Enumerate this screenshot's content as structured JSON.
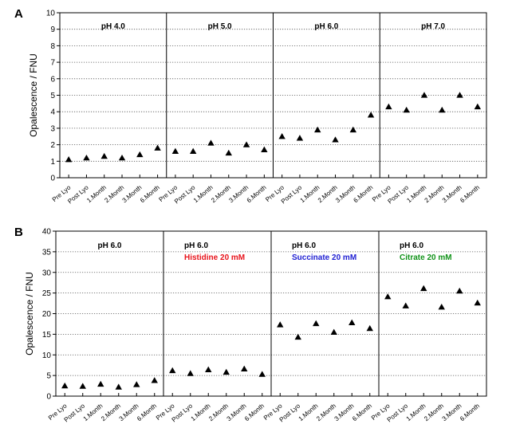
{
  "chart_data": [
    {
      "panel_label": "A",
      "type": "scatter",
      "ylabel": "Opalescence / FNU",
      "ylim": [
        0,
        10
      ],
      "yticks": [
        0,
        1,
        2,
        3,
        4,
        5,
        6,
        7,
        8,
        9,
        10
      ],
      "grid": "dotted horizontal",
      "marker": "triangle",
      "marker_color": "#000000",
      "categories": [
        "Pre Lyo",
        "Post Lyo",
        "1.Month",
        "2.Month",
        "3.Month",
        "6.Month"
      ],
      "subplots": [
        {
          "title": "pH 4.0",
          "subtitle": "",
          "subtitle_color": "#000000",
          "values": [
            1.1,
            1.2,
            1.3,
            1.2,
            1.4,
            1.8
          ]
        },
        {
          "title": "pH 5.0",
          "subtitle": "",
          "subtitle_color": "#000000",
          "values": [
            1.6,
            1.6,
            2.1,
            1.5,
            2.0,
            1.7
          ]
        },
        {
          "title": "pH 6.0",
          "subtitle": "",
          "subtitle_color": "#000000",
          "values": [
            2.5,
            2.4,
            2.9,
            2.3,
            2.9,
            3.8
          ]
        },
        {
          "title": "pH 7.0",
          "subtitle": "",
          "subtitle_color": "#000000",
          "values": [
            4.3,
            4.1,
            5.0,
            4.1,
            5.0,
            4.3
          ]
        }
      ]
    },
    {
      "panel_label": "B",
      "type": "scatter",
      "ylabel": "Opalescence / FNU",
      "ylim": [
        0,
        40
      ],
      "yticks": [
        0,
        5,
        10,
        15,
        20,
        25,
        30,
        35,
        40
      ],
      "grid": "dotted horizontal",
      "marker": "triangle",
      "marker_color": "#000000",
      "categories": [
        "Pre Lyo",
        "Post Lyo",
        "1.Month",
        "2.Month",
        "3.Month",
        "6.Month"
      ],
      "subplots": [
        {
          "title": "pH 6.0",
          "subtitle": "",
          "subtitle_color": "#000000",
          "values": [
            2.5,
            2.4,
            2.9,
            2.2,
            2.8,
            3.8
          ]
        },
        {
          "title": "pH 6.0",
          "subtitle": "Histidine  20 mM",
          "subtitle_color": "#e8141c",
          "values": [
            6.2,
            5.5,
            6.4,
            5.8,
            6.6,
            5.3
          ]
        },
        {
          "title": "pH 6.0",
          "subtitle": "Succinate  20 mM",
          "subtitle_color": "#1e1ed2",
          "values": [
            17.3,
            14.3,
            17.6,
            15.5,
            17.8,
            16.4
          ]
        },
        {
          "title": "pH 6.0",
          "subtitle": "Citrate  20 mM",
          "subtitle_color": "#12931a",
          "values": [
            24.1,
            21.9,
            26.1,
            21.6,
            25.5,
            22.6
          ]
        }
      ]
    }
  ]
}
